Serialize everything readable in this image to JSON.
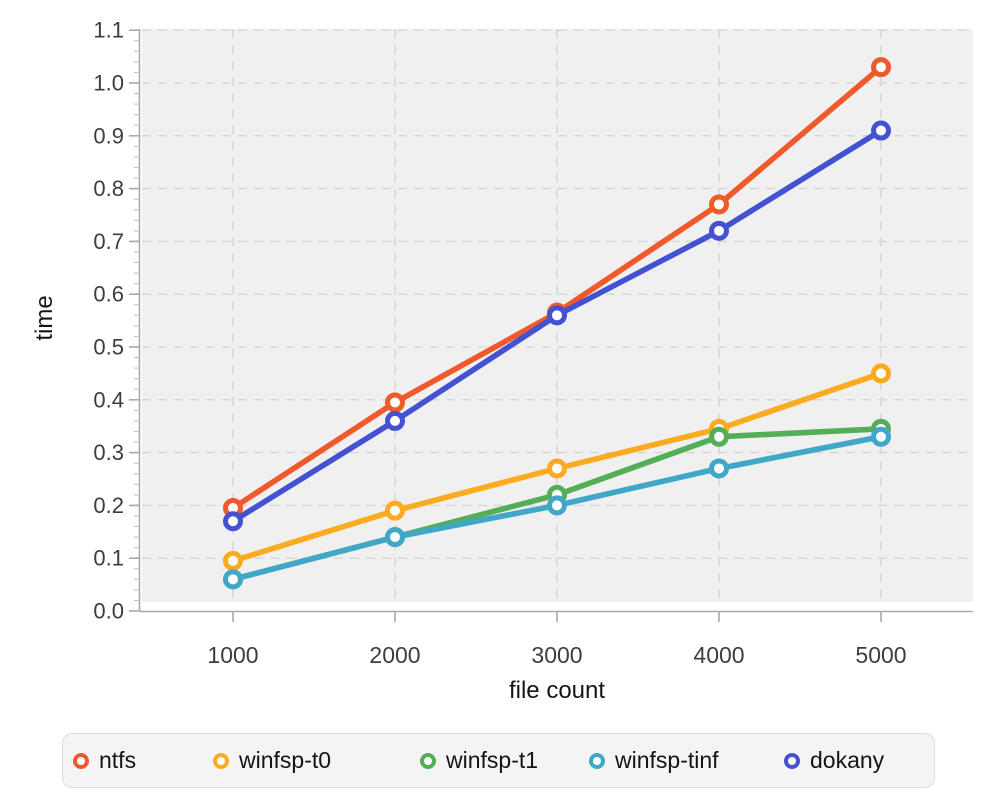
{
  "chart_data": {
    "type": "line",
    "xlabel": "file count",
    "ylabel": "time",
    "x": [
      1000,
      2000,
      3000,
      4000,
      5000
    ],
    "xticks": [
      1000,
      2000,
      3000,
      4000,
      5000
    ],
    "yticks": [
      0.0,
      0.1,
      0.2,
      0.3,
      0.4,
      0.5,
      0.6,
      0.7,
      0.8,
      0.9,
      1.0,
      1.1
    ],
    "ylim": [
      0,
      1.1
    ],
    "xlim": [
      430,
      5570
    ],
    "y_minor_step": 0.02,
    "grid": true,
    "grid_style": "dashed",
    "legend_position": "bottom",
    "series": [
      {
        "name": "ntfs",
        "color": "#f0592b",
        "values": [
          0.195,
          0.395,
          0.565,
          0.77,
          1.03
        ]
      },
      {
        "name": "winfsp-t0",
        "color": "#fbab20",
        "values": [
          0.095,
          0.19,
          0.27,
          0.345,
          0.45
        ]
      },
      {
        "name": "winfsp-t1",
        "color": "#54ad57",
        "values": [
          0.06,
          0.14,
          0.22,
          0.33,
          0.345
        ]
      },
      {
        "name": "winfsp-tinf",
        "color": "#41a7c9",
        "values": [
          0.06,
          0.14,
          0.2,
          0.27,
          0.33
        ]
      },
      {
        "name": "dokany",
        "color": "#4352d2",
        "values": [
          0.17,
          0.36,
          0.56,
          0.72,
          0.91
        ]
      }
    ]
  },
  "colors": {
    "figure_bg": "#ffffff",
    "panel_bg": "#f0f0f0",
    "grid": "#d8d8d8",
    "axis": "#a9a9a9",
    "minor_tick": "#c4c4c4",
    "tick_label": "#3d3d3d",
    "axis_title": "#151515",
    "legend_bg": "#f4f4f4",
    "legend_border": "#dcdcdc"
  }
}
